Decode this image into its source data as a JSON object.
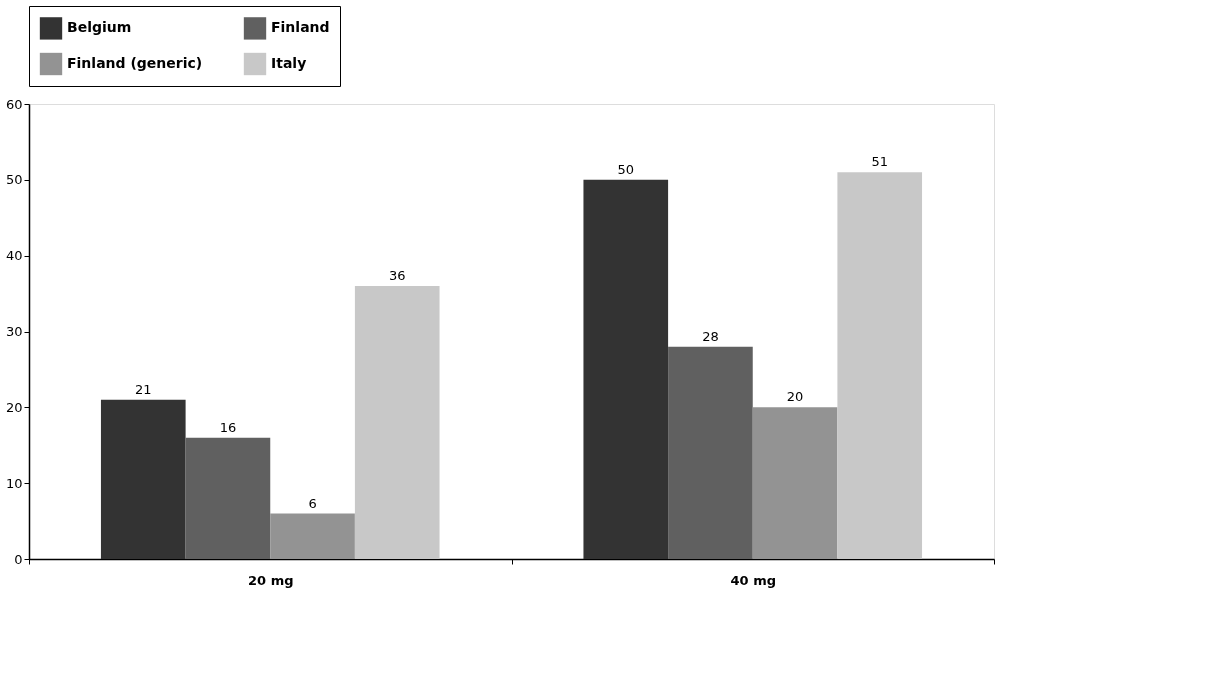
{
  "chart_data": {
    "type": "bar",
    "categories": [
      "20 mg",
      "40 mg"
    ],
    "series": [
      {
        "name": "Belgium",
        "color": "#333333",
        "values": [
          21,
          50
        ]
      },
      {
        "name": "Finland",
        "color": "#606060",
        "values": [
          16,
          28
        ]
      },
      {
        "name": "Finland (generic)",
        "color": "#939393",
        "values": [
          6,
          20
        ]
      },
      {
        "name": "Italy",
        "color": "#c8c8c8",
        "values": [
          36,
          51
        ]
      }
    ],
    "ylim": [
      0,
      60
    ],
    "yticks": [
      0,
      10,
      20,
      30,
      40,
      50,
      60
    ],
    "data_labels": true,
    "grid": false,
    "legend": "top"
  }
}
